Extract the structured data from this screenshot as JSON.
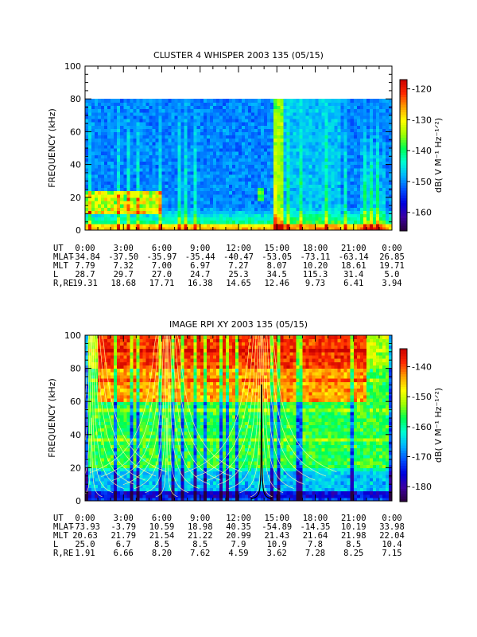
{
  "chart_data": [
    {
      "type": "heatmap",
      "title": "CLUSTER 4 WHISPER 2003 135 (05/15)",
      "ylabel": "FREQUENCY (kHz)",
      "ylim": [
        0,
        100
      ],
      "yticks": [
        "0",
        "20",
        "40",
        "60",
        "80",
        "100"
      ],
      "data_ceiling_khz": 80,
      "colorbar": {
        "label": "dB( V M⁻¹ Hz⁻¹ᐟ²)",
        "ticks": [
          "-120",
          "-130",
          "-140",
          "-150",
          "-160"
        ],
        "range": [
          -166,
          -117
        ]
      },
      "xlim_hours": [
        0,
        24
      ],
      "ephemeris": {
        "labels": [
          "UT",
          "MLAT",
          "MLT",
          "L",
          "R,RE"
        ],
        "rows": [
          [
            "0:00",
            "3:00",
            "6:00",
            "9:00",
            "12:00",
            "15:00",
            "18:00",
            "21:00",
            "0:00"
          ],
          [
            "-34.84",
            "-37.50",
            "-35.97",
            "-35.44",
            "-40.47",
            "-53.05",
            "-73.11",
            "-63.14",
            "26.85"
          ],
          [
            "7.79",
            "7.32",
            "7.00",
            "6.97",
            "7.27",
            "8.07",
            "10.20",
            "18.61",
            "19.71"
          ],
          [
            "28.7",
            "29.7",
            "27.0",
            "24.7",
            "25.3",
            "34.5",
            "115.3",
            "31.4",
            "5.0"
          ],
          [
            "19.31",
            "18.68",
            "17.71",
            "16.38",
            "14.65",
            "12.46",
            "9.73",
            "6.41",
            "3.94"
          ]
        ]
      }
    },
    {
      "type": "heatmap",
      "title": "IMAGE RPI XY 2003 135 (05/15)",
      "ylabel": "FREQUENCY (kHz)",
      "ylim": [
        0,
        100
      ],
      "yticks": [
        "0",
        "20",
        "40",
        "60",
        "80",
        "100"
      ],
      "colorbar": {
        "label": "dB( V M⁻¹ Hz⁻¹ᐟ²)",
        "ticks": [
          "-140",
          "-150",
          "-160",
          "-170",
          "-180"
        ],
        "range": [
          -185,
          -134
        ]
      },
      "xlim_hours": [
        0,
        24
      ],
      "ephemeris": {
        "labels": [
          "UT",
          "MLAT",
          "MLT",
          "L",
          "R,RE"
        ],
        "rows": [
          [
            "0:00",
            "3:00",
            "6:00",
            "9:00",
            "12:00",
            "15:00",
            "18:00",
            "21:00",
            "0:00"
          ],
          [
            "-73.93",
            "-3.79",
            "10.59",
            "18.98",
            "40.35",
            "-54.89",
            "-14.35",
            "10.19",
            "33.98"
          ],
          [
            "20.63",
            "21.79",
            "21.54",
            "21.22",
            "20.99",
            "21.43",
            "21.64",
            "21.98",
            "22.04"
          ],
          [
            "25.0",
            "6.7",
            "8.5",
            "8.5",
            "7.9",
            "10.9",
            "7.8",
            "8.5",
            "10.4"
          ],
          [
            "1.91",
            "6.66",
            "8.20",
            "7.62",
            "4.59",
            "3.62",
            "7.28",
            "8.25",
            "7.15"
          ]
        ]
      }
    }
  ],
  "colors": {
    "scale": [
      "#28003c",
      "#3c00a0",
      "#0000dc",
      "#0050ff",
      "#00b4ff",
      "#00ffd2",
      "#00ff50",
      "#a0ff00",
      "#ffff00",
      "#ffa000",
      "#ff2800",
      "#c80000"
    ]
  }
}
